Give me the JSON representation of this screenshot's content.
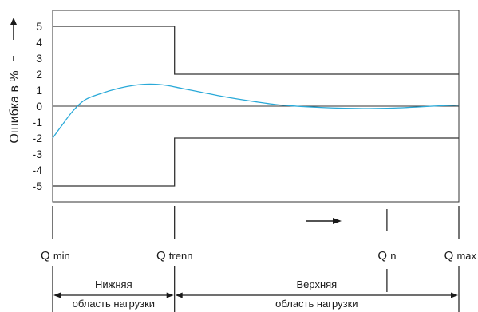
{
  "chart_data": {
    "type": "line",
    "ylabel": "Ошибка в %",
    "ylim": [
      -6,
      6
    ],
    "yticks": [
      "5",
      "4",
      "3",
      "2",
      "1",
      "0",
      "-1",
      "-2",
      "-3",
      "-4",
      "-5"
    ],
    "ytick_values": [
      5,
      4,
      3,
      2,
      1,
      0,
      -1,
      -2,
      -3,
      -4,
      -5
    ],
    "x_domain": [
      0,
      1
    ],
    "q_markers": [
      {
        "label": "Q",
        "sub": "min",
        "x": 0.0
      },
      {
        "label": "Q",
        "sub": "trenn",
        "x": 0.3
      },
      {
        "label": "Q",
        "sub": "n",
        "x": 0.823
      },
      {
        "label": "Q",
        "sub": "max",
        "x": 1.0
      }
    ],
    "error_limits": {
      "upper": [
        {
          "x": 0,
          "y": 5
        },
        {
          "x": 0.3,
          "y": 5
        },
        {
          "x": 0.3,
          "y": 2
        },
        {
          "x": 1,
          "y": 2
        }
      ],
      "lower": [
        {
          "x": 0,
          "y": -5
        },
        {
          "x": 0.3,
          "y": -5
        },
        {
          "x": 0.3,
          "y": -2
        },
        {
          "x": 1,
          "y": -2
        }
      ]
    },
    "series": [
      {
        "color": "#29a9d8",
        "x": [
          0.0,
          0.02,
          0.05,
          0.08,
          0.12,
          0.16,
          0.2,
          0.24,
          0.28,
          0.32,
          0.37,
          0.42,
          0.48,
          0.55,
          0.6,
          0.66,
          0.72,
          0.78,
          0.84,
          0.9,
          0.95,
          1.0
        ],
        "y": [
          -2.0,
          -1.3,
          -0.3,
          0.4,
          0.8,
          1.1,
          1.3,
          1.38,
          1.3,
          1.1,
          0.85,
          0.6,
          0.35,
          0.1,
          0.0,
          -0.08,
          -0.13,
          -0.15,
          -0.12,
          -0.05,
          0.02,
          0.07
        ]
      }
    ],
    "ranges": [
      {
        "line1": "Нижняя",
        "line2": "область нагрузки",
        "from": 0.0,
        "to": 0.3
      },
      {
        "line1": "Верхняя",
        "line2": "область нагрузки",
        "from": 0.3,
        "to": 1.0
      }
    ]
  }
}
